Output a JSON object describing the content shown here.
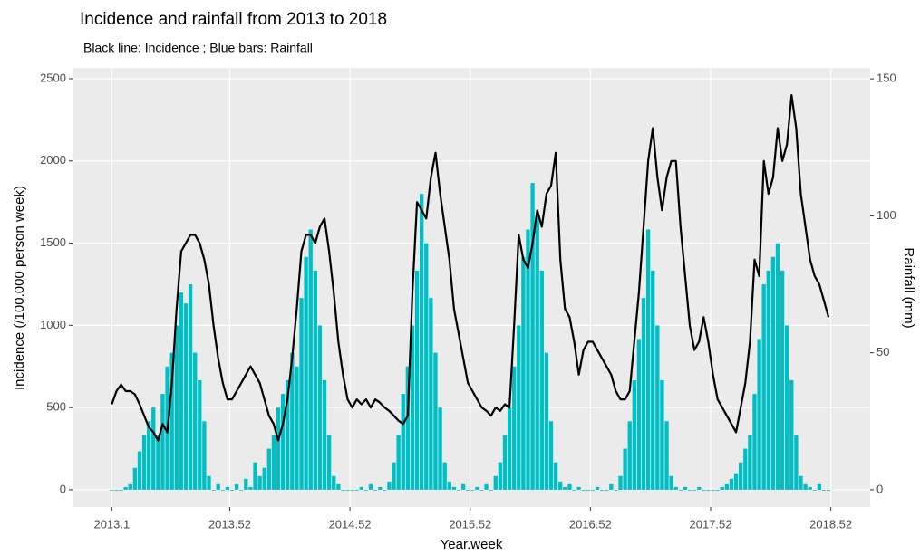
{
  "chart_data": {
    "type": "bar-line",
    "title": "Incidence and rainfall from 2013 to 2018",
    "subtitle": "Black line: Incidence ; Blue bars: Rainfall",
    "x_label": "Year.week",
    "y_label": "Incidence (/100.000 person week)",
    "y2_label": "Rainfall (mm)",
    "x": [
      1,
      3,
      5,
      7,
      9,
      11,
      13,
      15,
      17,
      19,
      21,
      23,
      25,
      27,
      29,
      31,
      33,
      35,
      37,
      39,
      41,
      43,
      45,
      47,
      49,
      51,
      53,
      55,
      57,
      59,
      61,
      63,
      65,
      67,
      69,
      71,
      73,
      75,
      77,
      79,
      81,
      83,
      85,
      87,
      89,
      91,
      93,
      95,
      97,
      99,
      101,
      103,
      105,
      107,
      109,
      111,
      113,
      115,
      117,
      119,
      121,
      123,
      125,
      127,
      129,
      131,
      133,
      135,
      137,
      139,
      141,
      143,
      145,
      147,
      149,
      151,
      153,
      155,
      157,
      159,
      161,
      163,
      165,
      167,
      169,
      171,
      173,
      175,
      177,
      179,
      181,
      183,
      185,
      187,
      189,
      191,
      193,
      195,
      197,
      199,
      201,
      203,
      205,
      207,
      209,
      211,
      213,
      215,
      217,
      219,
      221,
      223,
      225,
      227,
      229,
      231,
      233,
      235,
      237,
      239,
      241,
      243,
      245,
      247,
      249,
      251,
      253,
      255,
      257,
      259,
      261,
      263,
      265,
      267,
      269,
      271,
      273,
      275,
      277,
      279,
      281,
      283,
      285,
      287,
      289,
      291,
      293,
      295,
      297,
      299,
      301,
      303,
      305,
      307,
      309,
      311
    ],
    "xlim": [
      -16,
      329
    ],
    "xticks": [
      {
        "value": 1,
        "label": "2013.1"
      },
      {
        "value": 52,
        "label": "2013.52"
      },
      {
        "value": 104,
        "label": "2014.52"
      },
      {
        "value": 156,
        "label": "2015.52"
      },
      {
        "value": 208,
        "label": "2016.52"
      },
      {
        "value": 260,
        "label": "2017.52"
      },
      {
        "value": 312,
        "label": "2018.52"
      }
    ],
    "ylim": [
      -105,
      2566
    ],
    "yticks": [
      0,
      500,
      1000,
      1500,
      2000,
      2500
    ],
    "y2lim": [
      -6.3,
      154
    ],
    "y2ticks": [
      0,
      50,
      100,
      150
    ],
    "grid": true,
    "series": [
      {
        "name": "Incidence",
        "color": "#000000",
        "mark": "line",
        "values": [
          520,
          600,
          640,
          600,
          600,
          580,
          520,
          450,
          380,
          350,
          300,
          400,
          350,
          650,
          1100,
          1450,
          1500,
          1550,
          1550,
          1500,
          1400,
          1250,
          1000,
          800,
          650,
          550,
          550,
          600,
          650,
          700,
          750,
          700,
          650,
          550,
          450,
          400,
          300,
          400,
          550,
          800,
          1100,
          1450,
          1550,
          1550,
          1500,
          1600,
          1650,
          1450,
          1200,
          900,
          700,
          550,
          500,
          550,
          520,
          550,
          500,
          550,
          530,
          500,
          480,
          450,
          420,
          400,
          450,
          1200,
          1750,
          1700,
          1650,
          1900,
          2050,
          1800,
          1600,
          1400,
          1100,
          950,
          800,
          650,
          600,
          550,
          500,
          480,
          450,
          500,
          480,
          520,
          500,
          1000,
          1550,
          1400,
          1350,
          1500,
          1700,
          1600,
          1800,
          1850,
          2050,
          1400,
          1100,
          1050,
          900,
          700,
          850,
          900,
          900,
          850,
          800,
          750,
          700,
          600,
          550,
          550,
          600,
          900,
          1200,
          1600,
          2000,
          2200,
          1900,
          1700,
          1900,
          2000,
          2000,
          1600,
          1300,
          1000,
          850,
          900,
          1050,
          900,
          700,
          550,
          500,
          450,
          400,
          350,
          500,
          650,
          900,
          1400,
          1300,
          2000,
          1800,
          1900,
          2200,
          2000,
          2100,
          2400,
          2200,
          1800,
          1600,
          1400,
          1300,
          1250,
          1150,
          1050
        ]
      },
      {
        "name": "Rainfall",
        "color": "#00bfc4",
        "mark": "bar",
        "axis": "y2",
        "values": [
          0,
          0,
          0,
          1,
          2,
          8,
          14,
          20,
          25,
          30,
          20,
          35,
          45,
          50,
          60,
          72,
          68,
          75,
          50,
          40,
          25,
          5,
          0,
          2,
          0,
          1,
          0,
          2,
          0,
          4,
          1,
          10,
          5,
          8,
          15,
          20,
          30,
          35,
          40,
          50,
          45,
          70,
          85,
          95,
          80,
          60,
          40,
          20,
          5,
          2,
          0,
          0,
          0,
          0,
          1,
          0,
          2,
          0,
          1,
          0,
          3,
          10,
          20,
          35,
          45,
          60,
          80,
          108,
          90,
          70,
          50,
          30,
          10,
          3,
          1,
          0,
          2,
          0,
          0,
          1,
          0,
          2,
          0,
          5,
          10,
          20,
          30,
          45,
          60,
          85,
          95,
          112,
          100,
          80,
          50,
          25,
          10,
          3,
          1,
          2,
          0,
          1,
          0,
          0,
          0,
          1,
          0,
          0,
          2,
          0,
          5,
          15,
          25,
          40,
          55,
          70,
          95,
          80,
          60,
          40,
          25,
          5,
          1,
          0,
          1,
          0,
          0,
          1,
          0,
          0,
          0,
          0,
          1,
          2,
          4,
          6,
          10,
          15,
          20,
          35,
          55,
          75,
          80,
          85,
          90,
          80,
          60,
          40,
          20,
          5,
          2,
          1,
          0,
          2,
          0,
          0
        ]
      }
    ]
  }
}
